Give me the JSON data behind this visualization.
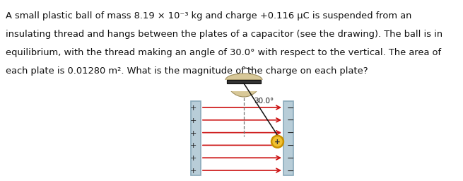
{
  "text_lines": [
    "A small plastic ball of mass 8.19 × 10⁻³ kg and charge +0.116 μC is suspended from an",
    "insulating thread and hangs between the plates of a capacitor (see the drawing). The ball is in",
    "equilibrium, with the thread making an angle of 30.0° with respect to the vertical. The area of",
    "each plate is 0.01280 m². What is the magnitude of the charge on each plate?"
  ],
  "angle_label": "30.0°",
  "plate_color": "#b8cdd8",
  "plate_border_color": "#8aaabb",
  "arrow_color": "#cc1111",
  "thread_color": "#111111",
  "ball_color_outer": "#c89000",
  "ball_color_inner": "#f0c030",
  "dashed_color": "#777777",
  "plus_color": "#222222",
  "minus_color": "#222222",
  "bg_color": "#ffffff",
  "num_field_lines": 6,
  "fig_width": 6.55,
  "fig_height": 2.56
}
